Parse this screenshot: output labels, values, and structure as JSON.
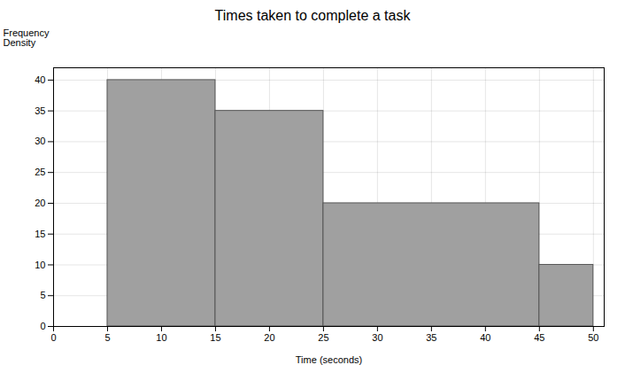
{
  "chart_data": {
    "type": "histogram",
    "title": "Times taken to complete a task",
    "x_label": "Time (seconds)",
    "y_label": "Frequency\nDensity",
    "bins": [
      5,
      15,
      25,
      45,
      50
    ],
    "values": [
      40,
      35,
      20,
      10
    ],
    "color": "#a0a0a0",
    "xlim": [
      0,
      51
    ],
    "ylim": [
      0,
      42
    ],
    "xticks": [
      0,
      5,
      10,
      15,
      20,
      25,
      30,
      35,
      40,
      45,
      50
    ],
    "yticks": [
      0,
      5,
      10,
      15,
      20,
      25,
      30,
      35,
      40
    ],
    "grid": true
  }
}
